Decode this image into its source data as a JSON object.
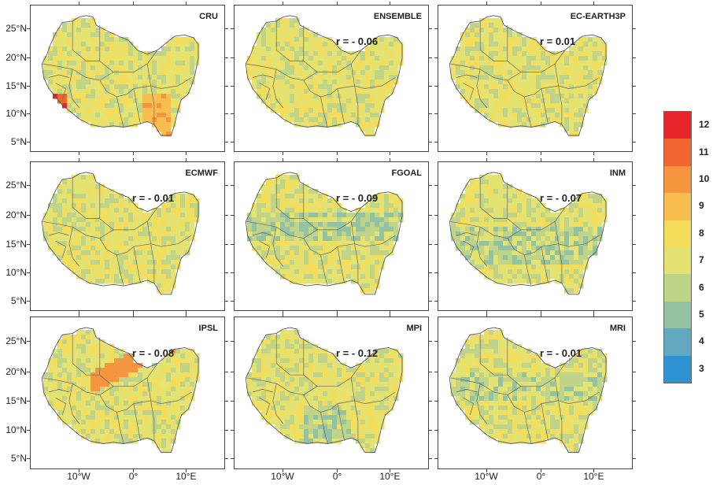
{
  "panels": [
    {
      "name": "CRU",
      "r": ""
    },
    {
      "name": "ENSEMBLE",
      "r": "r = - 0.06"
    },
    {
      "name": "EC-EARTH3P",
      "r": "r = 0.01"
    },
    {
      "name": "ECMWF",
      "r": "r = - 0.01"
    },
    {
      "name": "FGOAL",
      "r": "r = - 0.09"
    },
    {
      "name": "INM",
      "r": "r = - 0.07"
    },
    {
      "name": "IPSL",
      "r": "r = - 0.08"
    },
    {
      "name": "MPI",
      "r": "r = - 0.12"
    },
    {
      "name": "MRI",
      "r": "r = - 0.01"
    }
  ],
  "y_axis_labels": [
    "25°N",
    "20°N",
    "15°N",
    "10°N",
    "5°N"
  ],
  "x_axis_labels": [
    "10°W",
    "0°",
    "10°E"
  ],
  "legend": {
    "labels": [
      "12",
      "11",
      "10",
      "9",
      "8",
      "7",
      "6",
      "5",
      "4",
      "3"
    ],
    "colors": [
      "#e8262a",
      "#f06530",
      "#f5963e",
      "#f8bd4f",
      "#f5dd5c",
      "#e4e372",
      "#bfd489",
      "#93c2a2",
      "#62a8c0",
      "#2d93d2"
    ]
  }
}
